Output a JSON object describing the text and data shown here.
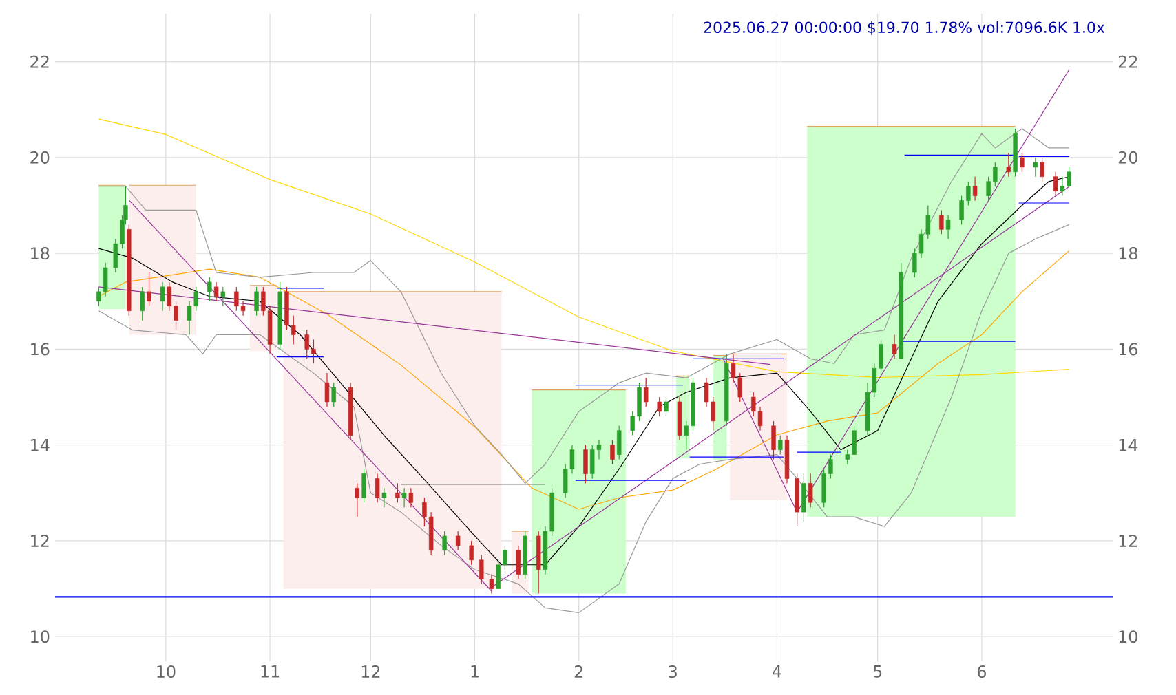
{
  "chart_data": {
    "type": "candlestick",
    "title": "2025.06.27 00:00:00 $19.70 1.78% vol:7096.6K 1.0x",
    "x": [
      "2024-09-11",
      "2024-09-13",
      "2024-09-16",
      "2024-09-18",
      "2024-09-19",
      "2024-09-20",
      "2024-09-24",
      "2024-09-26",
      "2024-09-30",
      "2024-10-02",
      "2024-10-04",
      "2024-10-08",
      "2024-10-10",
      "2024-10-14",
      "2024-10-16",
      "2024-10-18",
      "2024-10-22",
      "2024-10-24",
      "2024-10-28",
      "2024-10-30",
      "2024-11-01",
      "2024-11-04",
      "2024-11-06",
      "2024-11-08",
      "2024-11-12",
      "2024-11-14",
      "2024-11-18",
      "2024-11-20",
      "2024-11-25",
      "2024-11-27",
      "2024-11-29",
      "2024-12-03",
      "2024-12-05",
      "2024-12-09",
      "2024-12-11",
      "2024-12-13",
      "2024-12-17",
      "2024-12-19",
      "2024-12-23",
      "2024-12-27",
      "2024-12-31",
      "2025-01-03",
      "2025-01-06",
      "2025-01-08",
      "2025-01-10",
      "2025-01-14",
      "2025-01-16",
      "2025-01-20",
      "2025-01-22",
      "2025-01-24",
      "2025-01-28",
      "2025-01-30",
      "2025-02-03",
      "2025-02-05",
      "2025-02-07",
      "2025-02-11",
      "2025-02-13",
      "2025-02-17",
      "2025-02-19",
      "2025-02-21",
      "2025-02-25",
      "2025-02-27",
      "2025-03-03",
      "2025-03-05",
      "2025-03-07",
      "2025-03-11",
      "2025-03-13",
      "2025-03-17",
      "2025-03-19",
      "2025-03-21",
      "2025-03-25",
      "2025-03-27",
      "2025-03-31",
      "2025-04-02",
      "2025-04-04",
      "2025-04-07",
      "2025-04-09",
      "2025-04-11",
      "2025-04-15",
      "2025-04-17",
      "2025-04-22",
      "2025-04-24",
      "2025-04-28",
      "2025-04-30",
      "2025-05-02",
      "2025-05-06",
      "2025-05-08",
      "2025-05-12",
      "2025-05-14",
      "2025-05-16",
      "2025-05-20",
      "2025-05-22",
      "2025-05-26",
      "2025-05-28",
      "2025-05-30",
      "2025-06-03",
      "2025-06-05",
      "2025-06-09",
      "2025-06-11",
      "2025-06-13",
      "2025-06-17",
      "2025-06-19",
      "2025-06-23",
      "2025-06-25",
      "2025-06-27"
    ],
    "ohlc": [
      [
        17.0,
        17.3,
        16.9,
        17.2
      ],
      [
        17.2,
        17.8,
        17.1,
        17.7
      ],
      [
        17.7,
        18.3,
        17.6,
        18.2
      ],
      [
        18.2,
        18.8,
        18.1,
        18.7
      ],
      [
        18.7,
        19.4,
        18.6,
        19.0
      ],
      [
        18.5,
        18.6,
        16.7,
        16.8
      ],
      [
        16.8,
        17.3,
        16.6,
        17.2
      ],
      [
        17.2,
        17.6,
        16.9,
        17.0
      ],
      [
        17.0,
        17.4,
        16.8,
        17.3
      ],
      [
        17.3,
        17.4,
        16.8,
        16.9
      ],
      [
        16.9,
        17.0,
        16.4,
        16.6
      ],
      [
        16.6,
        17.0,
        16.3,
        16.9
      ],
      [
        16.9,
        17.3,
        16.8,
        17.2
      ],
      [
        17.2,
        17.5,
        17.0,
        17.4
      ],
      [
        17.3,
        17.4,
        17.0,
        17.1
      ],
      [
        17.1,
        17.3,
        16.9,
        17.2
      ],
      [
        17.2,
        17.3,
        16.8,
        16.9
      ],
      [
        16.9,
        17.0,
        16.7,
        16.8
      ],
      [
        16.8,
        17.3,
        16.7,
        17.2
      ],
      [
        17.2,
        17.3,
        16.7,
        16.8
      ],
      [
        16.8,
        16.9,
        15.9,
        16.1
      ],
      [
        16.1,
        17.4,
        16.0,
        17.2
      ],
      [
        17.2,
        17.3,
        16.4,
        16.5
      ],
      [
        16.5,
        16.7,
        16.1,
        16.3
      ],
      [
        16.3,
        16.4,
        15.8,
        16.0
      ],
      [
        16.0,
        16.2,
        15.7,
        15.9
      ],
      [
        15.3,
        15.5,
        14.8,
        14.9
      ],
      [
        14.9,
        15.3,
        14.8,
        15.2
      ],
      [
        15.2,
        15.3,
        14.1,
        14.2
      ],
      [
        13.1,
        13.2,
        12.5,
        12.9
      ],
      [
        12.9,
        13.5,
        12.8,
        13.4
      ],
      [
        13.3,
        13.4,
        12.8,
        12.9
      ],
      [
        12.9,
        13.1,
        12.7,
        13.0
      ],
      [
        13.0,
        13.2,
        12.8,
        12.9
      ],
      [
        12.9,
        13.1,
        12.7,
        13.0
      ],
      [
        13.0,
        13.1,
        12.7,
        12.8
      ],
      [
        12.8,
        12.9,
        12.3,
        12.5
      ],
      [
        12.5,
        12.6,
        11.7,
        11.8
      ],
      [
        11.8,
        12.2,
        11.7,
        12.1
      ],
      [
        12.1,
        12.2,
        11.8,
        11.9
      ],
      [
        11.9,
        12.0,
        11.5,
        11.6
      ],
      [
        11.6,
        11.7,
        11.1,
        11.2
      ],
      [
        11.2,
        11.3,
        10.9,
        11.0
      ],
      [
        11.0,
        11.6,
        11.0,
        11.5
      ],
      [
        11.5,
        11.9,
        11.4,
        11.8
      ],
      [
        11.8,
        11.9,
        11.2,
        11.3
      ],
      [
        11.3,
        12.2,
        11.2,
        12.1
      ],
      [
        12.1,
        12.2,
        10.9,
        11.4
      ],
      [
        11.4,
        12.3,
        11.3,
        12.2
      ],
      [
        12.2,
        13.1,
        12.1,
        13.0
      ],
      [
        13.0,
        13.6,
        12.9,
        13.5
      ],
      [
        13.5,
        14.0,
        13.4,
        13.9
      ],
      [
        13.9,
        14.0,
        13.2,
        13.4
      ],
      [
        13.4,
        14.0,
        13.3,
        13.9
      ],
      [
        13.9,
        14.1,
        13.7,
        14.0
      ],
      [
        14.0,
        14.1,
        13.6,
        13.7
      ],
      [
        13.8,
        14.4,
        13.7,
        14.3
      ],
      [
        14.3,
        14.7,
        14.2,
        14.6
      ],
      [
        14.6,
        15.3,
        14.5,
        15.2
      ],
      [
        15.2,
        15.4,
        14.8,
        14.9
      ],
      [
        14.9,
        15.0,
        14.6,
        14.7
      ],
      [
        14.7,
        15.0,
        14.6,
        14.9
      ],
      [
        14.9,
        15.0,
        14.1,
        14.2
      ],
      [
        14.2,
        14.5,
        13.9,
        14.4
      ],
      [
        14.4,
        15.4,
        14.3,
        15.3
      ],
      [
        15.3,
        15.4,
        14.8,
        14.9
      ],
      [
        14.9,
        15.0,
        14.3,
        14.5
      ],
      [
        14.5,
        15.9,
        14.4,
        15.7
      ],
      [
        15.7,
        15.9,
        15.3,
        15.4
      ],
      [
        15.4,
        15.5,
        14.9,
        15.0
      ],
      [
        15.0,
        15.1,
        14.6,
        14.7
      ],
      [
        14.7,
        14.8,
        14.3,
        14.4
      ],
      [
        14.4,
        14.5,
        13.7,
        13.9
      ],
      [
        13.9,
        14.2,
        13.8,
        14.1
      ],
      [
        14.1,
        14.2,
        13.2,
        13.3
      ],
      [
        13.3,
        13.4,
        12.3,
        12.6
      ],
      [
        12.6,
        13.4,
        12.4,
        13.2
      ],
      [
        13.2,
        13.4,
        12.7,
        12.8
      ],
      [
        12.8,
        13.5,
        12.7,
        13.4
      ],
      [
        13.4,
        13.8,
        13.3,
        13.7
      ],
      [
        13.7,
        13.9,
        13.6,
        13.8
      ],
      [
        13.8,
        14.4,
        13.8,
        14.3
      ],
      [
        14.3,
        15.3,
        14.2,
        15.1
      ],
      [
        15.1,
        15.7,
        15.0,
        15.6
      ],
      [
        15.6,
        16.2,
        15.5,
        16.1
      ],
      [
        16.1,
        16.3,
        15.8,
        15.9
      ],
      [
        15.8,
        17.8,
        15.8,
        17.6
      ],
      [
        17.6,
        18.1,
        17.5,
        18.0
      ],
      [
        18.0,
        18.5,
        17.9,
        18.4
      ],
      [
        18.4,
        19.0,
        18.3,
        18.8
      ],
      [
        18.8,
        18.9,
        18.4,
        18.5
      ],
      [
        18.5,
        18.8,
        18.3,
        18.7
      ],
      [
        18.7,
        19.2,
        18.6,
        19.1
      ],
      [
        19.1,
        19.5,
        19.0,
        19.4
      ],
      [
        19.4,
        19.6,
        19.1,
        19.2
      ],
      [
        19.2,
        19.6,
        19.1,
        19.5
      ],
      [
        19.5,
        19.9,
        19.4,
        19.8
      ],
      [
        19.8,
        20.1,
        19.6,
        19.7
      ],
      [
        19.7,
        20.6,
        19.6,
        20.5
      ],
      [
        20.0,
        20.1,
        19.7,
        19.8
      ],
      [
        19.8,
        20.0,
        19.6,
        19.9
      ],
      [
        19.9,
        20.0,
        19.5,
        19.6
      ],
      [
        19.6,
        19.7,
        19.2,
        19.3
      ],
      [
        19.3,
        19.6,
        19.2,
        19.4
      ],
      [
        19.4,
        19.8,
        19.4,
        19.7
      ]
    ],
    "colors": [
      "#2ca02c",
      "#2ca02c",
      "#2ca02c",
      "#2ca02c",
      "#2ca02c",
      "#c62828",
      "#2ca02c",
      "#c62828",
      "#2ca02c",
      "#c62828",
      "#c62828",
      "#2ca02c",
      "#2ca02c",
      "#2ca02c",
      "#c62828",
      "#2ca02c",
      "#c62828",
      "#c62828",
      "#2ca02c",
      "#c62828",
      "#c62828",
      "#2ca02c",
      "#c62828",
      "#c62828",
      "#c62828",
      "#c62828",
      "#c62828",
      "#2ca02c",
      "#c62828",
      "#c62828",
      "#2ca02c",
      "#c62828",
      "#2ca02c",
      "#c62828",
      "#2ca02c",
      "#c62828",
      "#c62828",
      "#c62828",
      "#2ca02c",
      "#c62828",
      "#c62828",
      "#c62828",
      "#c62828",
      "#2ca02c",
      "#2ca02c",
      "#c62828",
      "#2ca02c",
      "#c62828",
      "#2ca02c",
      "#2ca02c",
      "#2ca02c",
      "#2ca02c",
      "#c62828",
      "#2ca02c",
      "#2ca02c",
      "#c62828",
      "#2ca02c",
      "#2ca02c",
      "#2ca02c",
      "#c62828",
      "#c62828",
      "#2ca02c",
      "#c62828",
      "#2ca02c",
      "#2ca02c",
      "#c62828",
      "#c62828",
      "#2ca02c",
      "#c62828",
      "#c62828",
      "#c62828",
      "#c62828",
      "#c62828",
      "#2ca02c",
      "#c62828",
      "#c62828",
      "#2ca02c",
      "#c62828",
      "#2ca02c",
      "#2ca02c",
      "#2ca02c",
      "#2ca02c",
      "#2ca02c",
      "#2ca02c",
      "#2ca02c",
      "#c62828",
      "#2ca02c",
      "#2ca02c",
      "#2ca02c",
      "#2ca02c",
      "#c62828",
      "#2ca02c",
      "#2ca02c",
      "#2ca02c",
      "#c62828",
      "#2ca02c",
      "#2ca02c",
      "#c62828",
      "#2ca02c",
      "#c62828",
      "#2ca02c",
      "#c62828",
      "#c62828",
      "#2ca02c",
      "#2ca02c"
    ],
    "series": [
      {
        "type": "line",
        "color": "#e0a060",
        "colors": [
          "#ccffcc",
          "#ccffcc"
        ],
        "x": [
          "2024-09-11",
          "2024-09-19"
        ],
        "lower": [
          16.84,
          16.84
        ],
        "upper": [
          19.42,
          19.42
        ],
        "values": [
          19.42,
          19.42
        ]
      },
      {
        "type": "line",
        "color": "#e0a060",
        "colors": [
          "#fdeeee",
          "#fdeeee"
        ],
        "x": [
          "2024-09-20",
          "2024-10-10"
        ],
        "lower": [
          16.3,
          16.3
        ],
        "upper": [
          19.42,
          19.42
        ],
        "values": [
          19.42,
          19.42
        ]
      },
      {
        "type": "line",
        "color": "#e0a060",
        "colors": [
          "#fdeeee",
          "#fdeeee"
        ],
        "x": [
          "2024-10-26",
          "2024-11-03"
        ],
        "lower": [
          15.96,
          15.96
        ],
        "upper": [
          17.33,
          17.33
        ],
        "values": [
          17.33,
          17.33
        ]
      },
      {
        "type": "line",
        "color": "#e0a060",
        "colors": [
          "#fdeeee",
          "#fdeeee"
        ],
        "x": [
          "2024-11-05",
          "2025-01-09"
        ],
        "lower": [
          11.0,
          11.0
        ],
        "upper": [
          17.2,
          17.2
        ],
        "values": [
          17.2,
          17.2
        ]
      },
      {
        "type": "line",
        "color": "#e0a060",
        "colors": [
          "#fdeeee",
          "#fdeeee"
        ],
        "x": [
          "2025-01-12",
          "2025-01-17"
        ],
        "lower": [
          10.9,
          10.9
        ],
        "upper": [
          12.2,
          12.2
        ],
        "values": [
          12.2,
          12.2
        ]
      },
      {
        "type": "line",
        "color": "#e0a060",
        "colors": [
          "#ccffcc",
          "#ccffcc"
        ],
        "x": [
          "2025-01-18",
          "2025-02-15"
        ],
        "lower": [
          10.9,
          10.9
        ],
        "upper": [
          15.15,
          15.15
        ],
        "values": [
          15.15,
          15.15
        ]
      },
      {
        "type": "line",
        "color": "#e0a060",
        "colors": [
          "#ccffcc",
          "#ccffcc"
        ],
        "x": [
          "2025-03-02",
          "2025-03-06"
        ],
        "lower": [
          13.72,
          13.72
        ],
        "upper": [
          15.44,
          15.44
        ],
        "values": [
          15.44,
          15.44
        ]
      },
      {
        "type": "line",
        "color": "#e0a060",
        "colors": [
          "#ccffcc",
          "#ccffcc"
        ],
        "x": [
          "2025-03-13",
          "2025-03-17"
        ],
        "lower": [
          13.69,
          13.69
        ],
        "upper": [
          15.87,
          15.87
        ],
        "values": [
          15.87,
          15.87
        ]
      },
      {
        "type": "line",
        "color": "#e0a060",
        "colors": [
          "#fdeeee",
          "#fdeeee"
        ],
        "x": [
          "2025-03-18",
          "2025-04-04"
        ],
        "lower": [
          12.85,
          12.85
        ],
        "upper": [
          15.9,
          15.9
        ],
        "values": [
          15.9,
          15.9
        ]
      },
      {
        "type": "line",
        "color": "#e0a060",
        "colors": [
          "#ccffcc",
          "#ccffcc"
        ],
        "x": [
          "2025-04-10",
          "2025-06-11"
        ],
        "lower": [
          12.5,
          12.5
        ],
        "upper": [
          20.65,
          20.65
        ],
        "values": [
          20.65,
          20.65
        ]
      },
      {
        "type": "line",
        "color": "#ffd700",
        "x": [
          "2024-09-11",
          "2024-10-01",
          "2024-11-01",
          "2024-12-01",
          "2025-01-01",
          "2025-02-01",
          "2025-03-01",
          "2025-04-01",
          "2025-05-01",
          "2025-06-01",
          "2025-06-27"
        ],
        "values": [
          20.8,
          20.48,
          19.54,
          18.82,
          17.82,
          16.67,
          15.96,
          15.53,
          15.41,
          15.47,
          15.58
        ]
      },
      {
        "type": "line",
        "color": "#ffa500",
        "x": [
          "2024-09-11",
          "2024-09-19",
          "2024-10-14",
          "2024-10-29",
          "2024-11-18",
          "2024-12-10",
          "2025-01-01",
          "2025-01-18",
          "2025-02-01",
          "2025-02-13",
          "2025-03-01",
          "2025-03-14",
          "2025-04-01",
          "2025-04-16",
          "2025-05-01",
          "2025-05-19",
          "2025-06-01",
          "2025-06-13",
          "2025-06-27"
        ],
        "values": [
          17.1,
          17.4,
          17.67,
          17.5,
          16.73,
          15.67,
          14.38,
          13.1,
          12.66,
          12.9,
          13.06,
          13.5,
          14.21,
          14.5,
          14.67,
          15.7,
          16.3,
          17.2,
          18.05
        ]
      },
      {
        "type": "line",
        "color": "#000000",
        "x": [
          "2024-09-11",
          "2024-09-21",
          "2024-10-03",
          "2024-10-14",
          "2024-10-29",
          "2024-11-10",
          "2024-11-22",
          "2024-12-05",
          "2024-12-18",
          "2025-01-01",
          "2025-01-09",
          "2025-01-22",
          "2025-02-01",
          "2025-02-13",
          "2025-02-25",
          "2025-03-05",
          "2025-03-18",
          "2025-04-01",
          "2025-04-11",
          "2025-04-20",
          "2025-05-01",
          "2025-05-11",
          "2025-05-19",
          "2025-06-01",
          "2025-06-13",
          "2025-06-21",
          "2025-06-27"
        ],
        "values": [
          18.1,
          17.9,
          17.4,
          17.1,
          17.0,
          16.3,
          15.3,
          14.2,
          13.2,
          12.1,
          11.5,
          11.5,
          12.3,
          13.5,
          14.8,
          15.1,
          15.4,
          15.5,
          14.7,
          13.9,
          14.3,
          15.8,
          17.0,
          18.2,
          19.0,
          19.5,
          19.6
        ]
      },
      {
        "type": "line",
        "color": "#999999",
        "x": [
          "2024-09-11",
          "2024-09-19",
          "2024-09-25",
          "2024-10-10",
          "2024-10-16",
          "2024-10-29",
          "2024-11-14",
          "2024-11-26",
          "2024-12-01",
          "2024-12-10",
          "2024-12-22",
          "2025-01-01",
          "2025-01-09",
          "2025-01-16",
          "2025-01-22",
          "2025-02-01",
          "2025-02-13",
          "2025-02-21",
          "2025-03-05",
          "2025-03-18",
          "2025-04-01",
          "2025-04-11",
          "2025-04-18",
          "2025-04-24",
          "2025-05-03",
          "2025-05-11",
          "2025-05-23",
          "2025-06-01",
          "2025-06-05",
          "2025-06-13",
          "2025-06-21",
          "2025-06-27"
        ],
        "values": [
          19.4,
          19.4,
          18.9,
          18.9,
          17.6,
          17.5,
          17.6,
          17.6,
          17.85,
          17.2,
          15.5,
          14.4,
          13.8,
          13.2,
          13.6,
          14.7,
          15.3,
          15.5,
          15.4,
          15.9,
          16.2,
          15.8,
          15.7,
          16.3,
          16.4,
          17.9,
          19.5,
          20.5,
          20.2,
          20.6,
          20.2,
          20.2
        ]
      },
      {
        "type": "line",
        "color": "#999999",
        "x": [
          "2024-09-11",
          "2024-09-21",
          "2024-10-07",
          "2024-10-12",
          "2024-10-16",
          "2024-10-29",
          "2024-11-14",
          "2024-11-26",
          "2024-12-01",
          "2024-12-10",
          "2024-12-22",
          "2025-01-01",
          "2025-01-14",
          "2025-01-22",
          "2025-02-01",
          "2025-02-13",
          "2025-02-21",
          "2025-03-01",
          "2025-03-09",
          "2025-03-18",
          "2025-04-01",
          "2025-04-07",
          "2025-04-16",
          "2025-04-24",
          "2025-05-03",
          "2025-05-11",
          "2025-05-23",
          "2025-06-01",
          "2025-06-09",
          "2025-06-17",
          "2025-06-27"
        ],
        "values": [
          16.8,
          16.4,
          16.3,
          15.9,
          16.3,
          16.3,
          15.5,
          14.8,
          13.0,
          12.6,
          11.9,
          11.4,
          11.1,
          10.6,
          10.5,
          11.1,
          12.4,
          13.3,
          13.6,
          13.7,
          13.8,
          13.3,
          12.5,
          12.5,
          12.3,
          13.0,
          15.0,
          16.8,
          18.0,
          18.3,
          18.6
        ]
      },
      {
        "type": "line",
        "color": "#993399",
        "x": [
          "2024-09-20",
          "2025-01-06"
        ],
        "values": [
          19.11,
          10.95
        ]
      },
      {
        "type": "line",
        "color": "#993399",
        "x": [
          "2024-09-11",
          "2025-03-30"
        ],
        "values": [
          17.3,
          15.68
        ]
      },
      {
        "type": "line",
        "color": "#993399",
        "x": [
          "2025-01-06",
          "2025-06-27"
        ],
        "values": [
          11.03,
          19.39
        ]
      },
      {
        "type": "line",
        "color": "#993399",
        "x": [
          "2025-04-07",
          "2025-06-27"
        ],
        "values": [
          12.6,
          21.83
        ]
      },
      {
        "type": "line",
        "color": "#993399",
        "x": [
          "2025-03-16",
          "2025-04-07"
        ],
        "values": [
          15.8,
          12.6
        ]
      },
      {
        "type": "line",
        "color": "#0000ff",
        "x": [
          "2024-11-03",
          "2024-11-17"
        ],
        "values": [
          17.27,
          17.27
        ]
      },
      {
        "type": "line",
        "color": "#0000ff",
        "x": [
          "2024-11-03",
          "2024-11-17"
        ],
        "values": [
          15.84,
          15.84
        ]
      },
      {
        "type": "line",
        "color": "#000000",
        "x": [
          "2024-12-10",
          "2025-01-22"
        ],
        "values": [
          13.18,
          13.18
        ]
      },
      {
        "type": "line",
        "color": "#0000ff",
        "x": [
          "2025-01-31",
          "2025-03-04"
        ],
        "values": [
          15.25,
          15.25
        ]
      },
      {
        "type": "line",
        "color": "#0000ff",
        "x": [
          "2025-01-31",
          "2025-03-05"
        ],
        "values": [
          13.26,
          13.26
        ]
      },
      {
        "type": "line",
        "color": "#0000ff",
        "x": [
          "2025-03-07",
          "2025-04-03"
        ],
        "values": [
          15.8,
          15.8
        ]
      },
      {
        "type": "line",
        "color": "#0000ff",
        "x": [
          "2025-03-06",
          "2025-04-03"
        ],
        "values": [
          13.75,
          13.75
        ]
      },
      {
        "type": "line",
        "color": "#0000ff",
        "x": [
          "2025-04-07",
          "2025-04-20"
        ],
        "values": [
          13.85,
          13.85
        ]
      },
      {
        "type": "line",
        "color": "#0000ff",
        "x": [
          "2025-05-08",
          "2025-06-11"
        ],
        "values": [
          16.16,
          16.16
        ]
      },
      {
        "type": "line",
        "color": "#0000ff",
        "x": [
          "2025-05-09",
          "2025-06-11"
        ],
        "values": [
          20.05,
          20.05
        ]
      },
      {
        "type": "line",
        "color": "#0000ff",
        "x": [
          "2025-06-12",
          "2025-06-27"
        ],
        "values": [
          20.02,
          20.02
        ]
      },
      {
        "type": "line",
        "color": "#0000ff",
        "x": [
          "2025-06-12",
          "2025-06-27"
        ],
        "values": [
          19.05,
          19.05
        ]
      }
    ],
    "ref_lines": [
      {
        "axis": "y",
        "value": 10.83,
        "color": "#0000ff"
      }
    ],
    "xlim": [
      "2024-08-29",
      "2025-07-10"
    ],
    "xticks": [
      {
        "value": "2024-10-01",
        "label": "10"
      },
      {
        "value": "2024-11-01",
        "label": "11"
      },
      {
        "value": "2024-12-01",
        "label": "12"
      },
      {
        "value": "2025-01-01",
        "label": "1"
      },
      {
        "value": "2025-02-01",
        "label": "2"
      },
      {
        "value": "2025-03-01",
        "label": "3"
      },
      {
        "value": "2025-04-01",
        "label": "4"
      },
      {
        "value": "2025-05-01",
        "label": "5"
      },
      {
        "value": "2025-06-01",
        "label": "6"
      }
    ],
    "ylim": [
      9.5,
      23.0
    ],
    "yticks": [
      10,
      12,
      14,
      16,
      18,
      20,
      22
    ],
    "y2lim": [
      9.5,
      23.0
    ],
    "y2ticks": [
      10,
      12,
      14,
      16,
      18,
      20,
      22
    ],
    "grid": true
  }
}
